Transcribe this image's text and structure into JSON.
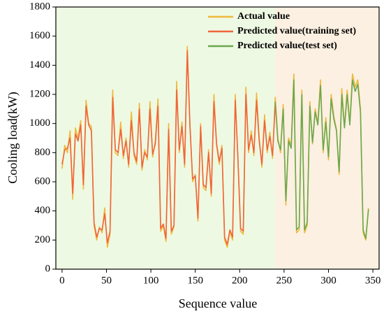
{
  "chart_data": {
    "type": "line",
    "x_label": "Sequence value",
    "y_label": "Cooling load(kW)",
    "xlim": [
      -7,
      357
    ],
    "ylim": [
      0,
      1800
    ],
    "xticks": [
      0,
      50,
      100,
      150,
      200,
      250,
      300,
      350
    ],
    "yticks": [
      0,
      200,
      400,
      600,
      800,
      1000,
      1200,
      1400,
      1600,
      1800
    ],
    "legend": "upper right",
    "shaded_regions": [
      {
        "x0": -7,
        "x1": 240,
        "color": "#eef9e3"
      },
      {
        "x0": 240,
        "x1": 357,
        "color": "#fbf0e1"
      }
    ],
    "x": [
      0,
      3,
      6,
      9,
      12,
      15,
      18,
      21,
      24,
      27,
      30,
      33,
      36,
      39,
      42,
      45,
      48,
      51,
      54,
      57,
      60,
      63,
      66,
      69,
      72,
      75,
      78,
      81,
      84,
      87,
      90,
      93,
      96,
      99,
      102,
      105,
      108,
      111,
      114,
      117,
      120,
      123,
      126,
      129,
      132,
      135,
      138,
      141,
      144,
      147,
      150,
      153,
      156,
      159,
      162,
      165,
      168,
      171,
      174,
      177,
      180,
      183,
      186,
      189,
      192,
      195,
      198,
      201,
      204,
      207,
      210,
      213,
      216,
      219,
      222,
      225,
      228,
      231,
      234,
      237,
      240,
      243,
      246,
      249,
      252,
      255,
      258,
      261,
      264,
      267,
      270,
      273,
      276,
      279,
      282,
      285,
      288,
      291,
      294,
      297,
      300,
      303,
      306,
      309,
      312,
      315,
      318,
      321,
      324,
      327,
      330,
      333,
      336,
      339,
      342,
      345
    ],
    "series": [
      {
        "name": "Actual value",
        "color": "#f0b83c",
        "values": [
          690,
          850,
          800,
          950,
          480,
          970,
          900,
          1020,
          550,
          1160,
          1000,
          980,
          300,
          200,
          290,
          250,
          420,
          150,
          240,
          1230,
          800,
          780,
          1010,
          760,
          900,
          700,
          1080,
          780,
          720,
          1140,
          680,
          820,
          750,
          1150,
          770,
          880,
          1170,
          260,
          300,
          190,
          1000,
          240,
          290,
          1290,
          800,
          1010,
          700,
          1530,
          1000,
          600,
          650,
          330,
          1000,
          560,
          540,
          820,
          500,
          1200,
          850,
          720,
          850,
          200,
          150,
          260,
          200,
          1200,
          750,
          260,
          240,
          1250,
          800,
          950,
          780,
          1210,
          900,
          700,
          1060,
          800,
          940,
          760,
          1180,
          900,
          800,
          1130,
          440,
          900,
          850,
          1340,
          250,
          270,
          1230,
          250,
          300,
          1150,
          860,
          1100,
          1000,
          1300,
          800,
          1040,
          750,
          1200,
          1050,
          960,
          650,
          1240,
          980,
          1230,
          1000,
          1340,
          1250,
          1300,
          1100,
          250,
          200,
          420
        ]
      },
      {
        "name": "Predicted value(training set)",
        "color": "#f0653c",
        "values": [
          720,
          820,
          830,
          900,
          520,
          930,
          880,
          990,
          580,
          1120,
          990,
          950,
          320,
          220,
          280,
          270,
          380,
          180,
          260,
          1180,
          820,
          800,
          960,
          780,
          880,
          720,
          1020,
          800,
          740,
          1100,
          700,
          800,
          770,
          1100,
          790,
          860,
          1120,
          280,
          310,
          210,
          960,
          260,
          300,
          1230,
          820,
          980,
          720,
          1500,
          980,
          620,
          640,
          350,
          980,
          580,
          560,
          800,
          520,
          1150,
          860,
          740,
          830,
          220,
          170,
          270,
          220,
          1160,
          770,
          280,
          260,
          1200,
          820,
          920,
          800,
          1160,
          880,
          720,
          1020,
          820,
          910,
          780,
          1130,
          null,
          null,
          null,
          null,
          null,
          null,
          null,
          null,
          null,
          null,
          null,
          null,
          null,
          null,
          null,
          null,
          null,
          null,
          null,
          null,
          null,
          null,
          null,
          null,
          null,
          null,
          null,
          null,
          null,
          null,
          null,
          null,
          null,
          null,
          null
        ]
      },
      {
        "name": "Predicted value(test set)",
        "color": "#6aa84f",
        "values": [
          null,
          null,
          null,
          null,
          null,
          null,
          null,
          null,
          null,
          null,
          null,
          null,
          null,
          null,
          null,
          null,
          null,
          null,
          null,
          null,
          null,
          null,
          null,
          null,
          null,
          null,
          null,
          null,
          null,
          null,
          null,
          null,
          null,
          null,
          null,
          null,
          null,
          null,
          null,
          null,
          null,
          null,
          null,
          null,
          null,
          null,
          null,
          null,
          null,
          null,
          null,
          null,
          null,
          null,
          null,
          null,
          null,
          null,
          null,
          null,
          null,
          null,
          null,
          null,
          null,
          null,
          null,
          null,
          null,
          null,
          null,
          null,
          null,
          null,
          null,
          null,
          null,
          null,
          null,
          null,
          1150,
          880,
          820,
          1100,
          470,
          880,
          830,
          1300,
          270,
          290,
          1200,
          270,
          320,
          1120,
          870,
          1080,
          990,
          1260,
          820,
          1010,
          770,
          1170,
          1030,
          950,
          670,
          1200,
          970,
          1200,
          990,
          1300,
          1220,
          1270,
          1080,
          270,
          210,
          410
        ]
      }
    ]
  }
}
